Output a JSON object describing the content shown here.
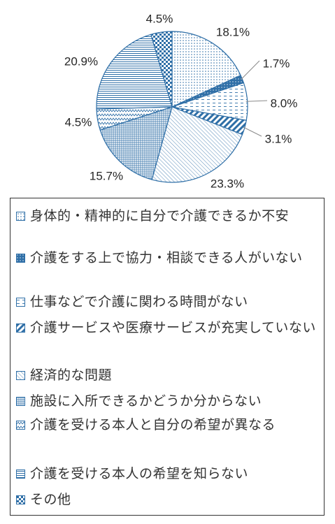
{
  "chart_data": {
    "type": "pie",
    "start_angle_deg": 90,
    "direction": "clockwise",
    "categories": [
      "身体的・精神的に自分で介護できるか不安",
      "介護をする上で協力・相談できる人がいない",
      "仕事などで介護に関わる時間がない",
      "介護サービスや医療サービスが充実していない",
      "経済的な問題",
      "施設に入所できるかどうか分からない",
      "介護を受ける本人と自分の希望が異なる",
      "介護を受ける本人の希望を知らない",
      "その他"
    ],
    "values": [
      18.1,
      1.7,
      8.0,
      3.1,
      23.3,
      15.7,
      4.5,
      20.9,
      4.5
    ],
    "data_labels": [
      "18.1%",
      "1.7%",
      "8.0%",
      "3.1%",
      "23.3%",
      "15.7%",
      "4.5%",
      "20.9%",
      "4.5%"
    ],
    "patterns": [
      "dots",
      "crosshatch-dark",
      "dashes",
      "diagonal-wide",
      "diagonal-fine",
      "grid-fine",
      "zigzag",
      "horizontal-lines",
      "checker"
    ],
    "accent_color": "#2f6fa7",
    "legend_position": "bottom"
  }
}
